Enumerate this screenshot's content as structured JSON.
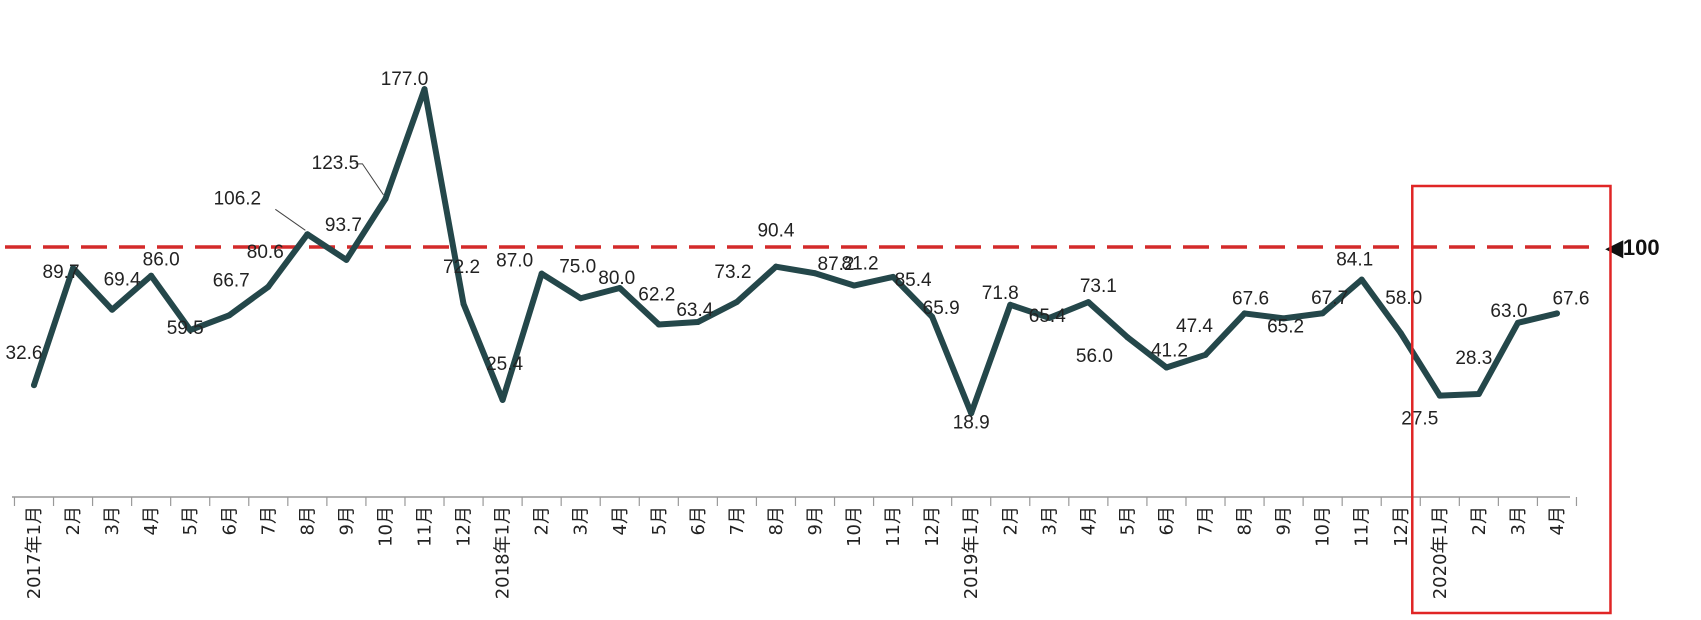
{
  "chart_data": {
    "type": "line",
    "title": "",
    "xlabel": "",
    "ylabel": "",
    "ylim": [
      0,
      200
    ],
    "grid": false,
    "categories": [
      "2017年1月",
      "2月",
      "3月",
      "4月",
      "5月",
      "6月",
      "7月",
      "8月",
      "9月",
      "10月",
      "11月",
      "12月",
      "2018年1月",
      "2月",
      "3月",
      "4月",
      "5月",
      "6月",
      "7月",
      "8月",
      "9月",
      "10月",
      "11月",
      "12月",
      "2019年1月",
      "2月",
      "3月",
      "4月",
      "5月",
      "6月",
      "7月",
      "8月",
      "9月",
      "10月",
      "11月",
      "12月",
      "2020年1月",
      "2月",
      "3月",
      "4月"
    ],
    "series": [
      {
        "values": [
          32.6,
          89.7,
          69.4,
          86.0,
          59.5,
          66.7,
          80.6,
          106.2,
          93.7,
          123.5,
          177.0,
          72.2,
          25.4,
          87.0,
          75.0,
          80.0,
          62.2,
          63.4,
          73.2,
          90.4,
          87.2,
          81.2,
          85.4,
          65.9,
          18.9,
          71.8,
          65.4,
          73.1,
          56.0,
          41.2,
          47.4,
          67.6,
          65.2,
          67.7,
          84.1,
          58.0,
          27.5,
          28.3,
          63.0,
          67.6
        ],
        "color": "#24474a"
      }
    ],
    "reference_line": {
      "value": 100,
      "label": "◀100",
      "color": "#d42a2a",
      "style": "dashed"
    },
    "highlight": {
      "from": "2020年1月",
      "to": "4月",
      "color": "#e02525"
    }
  }
}
